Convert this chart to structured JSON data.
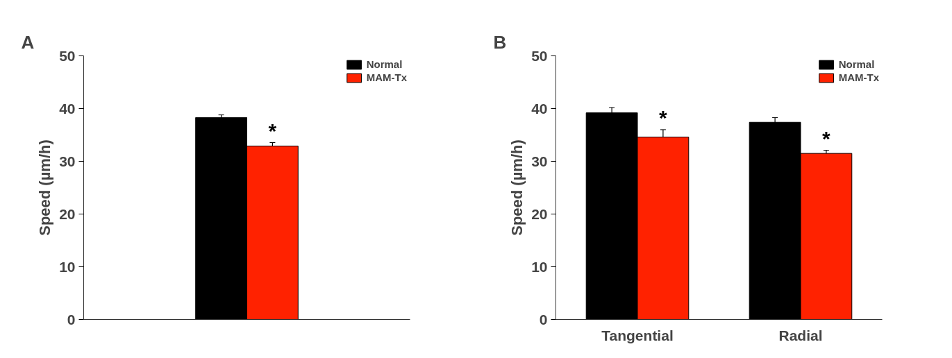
{
  "chart_data": [
    {
      "type": "bar",
      "title": "A",
      "ylabel": "Speed (µm/h)",
      "categories": [
        null
      ],
      "ylim": [
        0,
        50
      ],
      "yticks": [
        0,
        10,
        20,
        30,
        40,
        50
      ],
      "legend": "top right",
      "grid": false,
      "series": [
        {
          "name": "Normal",
          "color": "#000000",
          "values": [
            38.3
          ],
          "errors": [
            0.5
          ]
        },
        {
          "name": "MAM-Tx",
          "color": "#ff2200",
          "values": [
            32.9
          ],
          "errors": [
            0.65
          ]
        }
      ],
      "annotations": [
        "*"
      ]
    },
    {
      "type": "bar",
      "title": "B",
      "ylabel": "Speed (µm/h)",
      "categories": [
        "Tangential",
        "Radial"
      ],
      "ylim": [
        0,
        50
      ],
      "yticks": [
        0,
        10,
        20,
        30,
        40,
        50
      ],
      "legend": "top right",
      "grid": false,
      "series": [
        {
          "name": "Normal",
          "color": "#000000",
          "values": [
            39.2,
            37.4
          ],
          "errors": [
            1.0,
            0.9
          ]
        },
        {
          "name": "MAM-Tx",
          "color": "#ff2200",
          "values": [
            34.6,
            31.5
          ],
          "errors": [
            1.4,
            0.6
          ]
        }
      ],
      "annotations": [
        "*",
        "*"
      ]
    }
  ]
}
